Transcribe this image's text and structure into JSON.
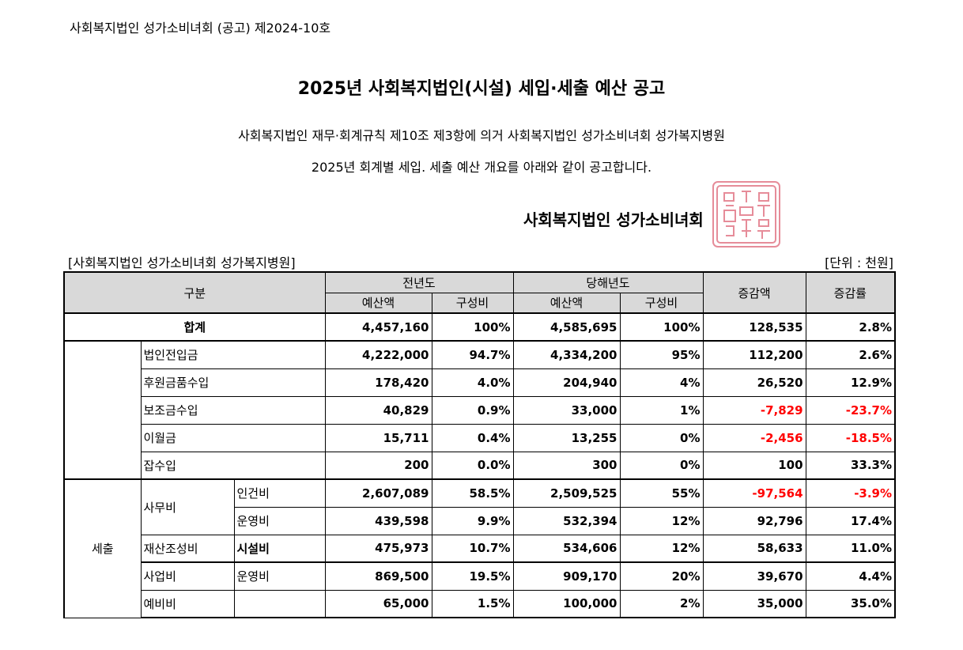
{
  "notice_number": "사회복지법인 성가소비녀회 (공고) 제2024-10호",
  "title": "2025년 사회복지법인(시설) 세입·세출 예산 공고",
  "intro_line1": "사회복지법인 재무·회계규칙 제10조 제3항에 의거 사회복지법인 성가소비녀회 성가복지병원",
  "intro_line2": "2025년 회계별 세입. 세출 예산 개요를 아래와 같이 공고합니다.",
  "corporation": "사회복지법인 성가소비녀회",
  "seal_color": "#e07080",
  "facility": "[사회복지법인 성가소비녀회 성가복지병원]",
  "unit": "[단위 : 천원]",
  "headers": {
    "category": "구분",
    "prev_year": "전년도",
    "this_year": "당해년도",
    "budget": "예산액",
    "share": "구성비",
    "change": "증감액",
    "rate": "증감률"
  },
  "total": {
    "label": "합계",
    "prev": "4,457,160",
    "prev_share": "100%",
    "cur": "4,585,695",
    "cur_share": "100%",
    "change": "128,535",
    "rate": "2.8%"
  },
  "revenue": [
    {
      "label": "법인전입금",
      "prev": "4,222,000",
      "prev_share": "94.7%",
      "cur": "4,334,200",
      "cur_share": "95%",
      "change": "112,200",
      "rate": "2.6%"
    },
    {
      "label": "후원금품수입",
      "prev": "178,420",
      "prev_share": "4.0%",
      "cur": "204,940",
      "cur_share": "4%",
      "change": "26,520",
      "rate": "12.9%"
    },
    {
      "label": "보조금수입",
      "prev": "40,829",
      "prev_share": "0.9%",
      "cur": "33,000",
      "cur_share": "1%",
      "change": "-7,829",
      "rate": "-23.7%"
    },
    {
      "label": "이월금",
      "prev": "15,711",
      "prev_share": "0.4%",
      "cur": "13,255",
      "cur_share": "0%",
      "change": "-2,456",
      "rate": "-18.5%"
    },
    {
      "label": "잡수입",
      "prev": "200",
      "prev_share": "0.0%",
      "cur": "300",
      "cur_share": "0%",
      "change": "100",
      "rate": "33.3%"
    }
  ],
  "expense": {
    "label": "세출",
    "groups": {
      "office": "사무비",
      "property": "재산조성비",
      "business": "사업비",
      "reserve": "예비비"
    },
    "rows": [
      {
        "sub": "인건비",
        "prev": "2,607,089",
        "prev_share": "58.5%",
        "cur": "2,509,525",
        "cur_share": "55%",
        "change": "-97,564",
        "rate": "-3.9%"
      },
      {
        "sub": "운영비",
        "prev": "439,598",
        "prev_share": "9.9%",
        "cur": "532,394",
        "cur_share": "12%",
        "change": "92,796",
        "rate": "17.4%"
      },
      {
        "sub": "시설비",
        "prev": "475,973",
        "prev_share": "10.7%",
        "cur": "534,606",
        "cur_share": "12%",
        "change": "58,633",
        "rate": "11.0%"
      },
      {
        "sub": "운영비",
        "prev": "869,500",
        "prev_share": "19.5%",
        "cur": "909,170",
        "cur_share": "20%",
        "change": "39,670",
        "rate": "4.4%"
      },
      {
        "sub": "",
        "prev": "65,000",
        "prev_share": "1.5%",
        "cur": "100,000",
        "cur_share": "2%",
        "change": "35,000",
        "rate": "35.0%"
      }
    ]
  }
}
